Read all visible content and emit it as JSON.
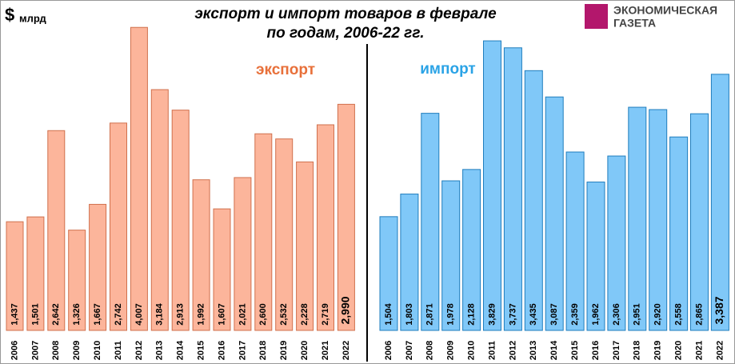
{
  "title": [
    "экспорт и импорт товаров в феврале",
    "по годам, 2006-22 гг."
  ],
  "unit_symbol": "$",
  "unit": "млрд",
  "logo": [
    "ЭКОНОМИЧЕСКАЯ",
    "ГАЗЕТА"
  ],
  "chart_data": [
    {
      "type": "bar",
      "label": "экспорт",
      "color": "#fcb59b",
      "edge_color": "#d0704c",
      "label_color": "#e8703a",
      "categories": [
        "2006",
        "2007",
        "2008",
        "2009",
        "2010",
        "2011",
        "2012",
        "2013",
        "2014",
        "2015",
        "2016",
        "2017",
        "2018",
        "2019",
        "2020",
        "2021",
        "2022"
      ],
      "values": [
        1.437,
        1.501,
        2.642,
        1.326,
        1.667,
        2.742,
        4.007,
        3.184,
        2.913,
        1.992,
        1.607,
        2.021,
        2.6,
        2.532,
        2.228,
        2.719,
        2.99
      ],
      "value_labels": [
        "1,437",
        "1,501",
        "2,642",
        "1,326",
        "1,667",
        "2,742",
        "4,007",
        "3,184",
        "2,913",
        "1,992",
        "1,607",
        "2,021",
        "2,600",
        "2,532",
        "2,228",
        "2,719",
        "2,990"
      ],
      "ylim": [
        0,
        4.2
      ]
    },
    {
      "type": "bar",
      "label": "импорт",
      "color": "#80c8f8",
      "edge_color": "#1f7dbd",
      "label_color": "#2aa3e6",
      "categories": [
        "2006",
        "2007",
        "2008",
        "2009",
        "2010",
        "2011",
        "2012",
        "2013",
        "2014",
        "2015",
        "2016",
        "2017",
        "2018",
        "2019",
        "2020",
        "2021",
        "2022"
      ],
      "values": [
        1.504,
        1.803,
        2.871,
        1.978,
        2.128,
        3.829,
        3.737,
        3.435,
        3.087,
        2.359,
        1.962,
        2.306,
        2.951,
        2.92,
        2.558,
        2.865,
        3.387
      ],
      "value_labels": [
        "1,504",
        "1,803",
        "2,871",
        "1,978",
        "2,128",
        "3,829",
        "3,737",
        "3,435",
        "3,087",
        "2,359",
        "1,962",
        "2,306",
        "2,951",
        "2,920",
        "2,558",
        "2,865",
        "3,387"
      ],
      "ylim": [
        0,
        4.2
      ]
    }
  ]
}
